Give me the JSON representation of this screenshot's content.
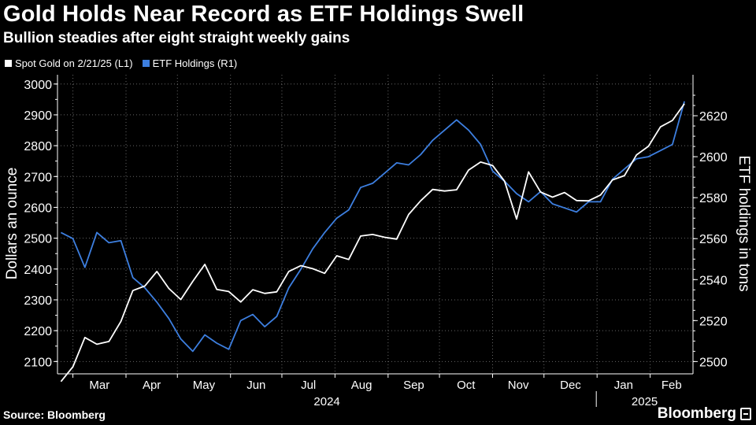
{
  "header": {
    "title": "Gold Holds Near Record as ETF Holdings Swell",
    "subtitle": "Bullion steadies after eight straight weekly gains"
  },
  "footer": {
    "source": "Source: Bloomberg",
    "brand": "Bloomberg"
  },
  "colors": {
    "gold_line": "#ffffff",
    "etf_line": "#3d7fe0",
    "background": "#000000",
    "grid": "#666666"
  },
  "chart_data": {
    "type": "line",
    "left_axis": {
      "label": "Dollars an ounce",
      "ylim": [
        2060,
        3030
      ],
      "ticks": [
        2100,
        2200,
        2300,
        2400,
        2500,
        2600,
        2700,
        2800,
        2900,
        3000
      ]
    },
    "right_axis": {
      "label": "ETF holdings in tons",
      "ylim": [
        2494,
        2640
      ],
      "ticks": [
        2500,
        2520,
        2540,
        2560,
        2580,
        2600,
        2620
      ]
    },
    "x_axis": {
      "month_labels": [
        "Mar",
        "Apr",
        "May",
        "Jun",
        "Jul",
        "Aug",
        "Sep",
        "Oct",
        "Nov",
        "Dec",
        "Jan",
        "Feb"
      ],
      "year_labels": [
        "2024",
        "2025"
      ]
    },
    "grid": true,
    "legend_position": "top-left",
    "series": [
      {
        "name": "Spot Gold on 2/21/25 (L1)",
        "axis": "left",
        "points": [
          [
            "2024-02-23",
            2035
          ],
          [
            "2024-03-01",
            2083
          ],
          [
            "2024-03-08",
            2178
          ],
          [
            "2024-03-15",
            2156
          ],
          [
            "2024-03-22",
            2165
          ],
          [
            "2024-03-29",
            2230
          ],
          [
            "2024-04-05",
            2330
          ],
          [
            "2024-04-12",
            2345
          ],
          [
            "2024-04-19",
            2392
          ],
          [
            "2024-04-26",
            2337
          ],
          [
            "2024-05-03",
            2301
          ],
          [
            "2024-05-10",
            2360
          ],
          [
            "2024-05-17",
            2415
          ],
          [
            "2024-05-24",
            2334
          ],
          [
            "2024-05-31",
            2327
          ],
          [
            "2024-06-07",
            2293
          ],
          [
            "2024-06-14",
            2333
          ],
          [
            "2024-06-21",
            2321
          ],
          [
            "2024-06-28",
            2326
          ],
          [
            "2024-07-05",
            2392
          ],
          [
            "2024-07-12",
            2411
          ],
          [
            "2024-07-19",
            2401
          ],
          [
            "2024-07-26",
            2386
          ],
          [
            "2024-08-02",
            2443
          ],
          [
            "2024-08-09",
            2431
          ],
          [
            "2024-08-16",
            2507
          ],
          [
            "2024-08-23",
            2512
          ],
          [
            "2024-08-30",
            2503
          ],
          [
            "2024-09-06",
            2497
          ],
          [
            "2024-09-13",
            2577
          ],
          [
            "2024-09-20",
            2621
          ],
          [
            "2024-09-27",
            2658
          ],
          [
            "2024-10-04",
            2653
          ],
          [
            "2024-10-11",
            2657
          ],
          [
            "2024-10-18",
            2721
          ],
          [
            "2024-10-25",
            2747
          ],
          [
            "2024-11-01",
            2736
          ],
          [
            "2024-11-08",
            2685
          ],
          [
            "2024-11-15",
            2562
          ],
          [
            "2024-11-22",
            2715
          ],
          [
            "2024-11-29",
            2650
          ],
          [
            "2024-12-06",
            2633
          ],
          [
            "2024-12-13",
            2648
          ],
          [
            "2024-12-20",
            2622
          ],
          [
            "2024-12-27",
            2621
          ],
          [
            "2025-01-03",
            2640
          ],
          [
            "2025-01-10",
            2689
          ],
          [
            "2025-01-17",
            2703
          ],
          [
            "2025-01-24",
            2770
          ],
          [
            "2025-01-31",
            2798
          ],
          [
            "2025-02-07",
            2861
          ],
          [
            "2025-02-14",
            2882
          ],
          [
            "2025-02-21",
            2936
          ]
        ]
      },
      {
        "name": "ETF Holdings (R1)",
        "axis": "right",
        "points": [
          [
            "2024-02-23",
            2563
          ],
          [
            "2024-03-01",
            2560
          ],
          [
            "2024-03-08",
            2546
          ],
          [
            "2024-03-15",
            2563
          ],
          [
            "2024-03-22",
            2558
          ],
          [
            "2024-03-29",
            2559
          ],
          [
            "2024-04-05",
            2541
          ],
          [
            "2024-04-12",
            2536
          ],
          [
            "2024-04-19",
            2529
          ],
          [
            "2024-04-26",
            2521
          ],
          [
            "2024-05-03",
            2511
          ],
          [
            "2024-05-10",
            2505
          ],
          [
            "2024-05-17",
            2513
          ],
          [
            "2024-05-24",
            2509
          ],
          [
            "2024-05-31",
            2506
          ],
          [
            "2024-06-07",
            2520
          ],
          [
            "2024-06-14",
            2523
          ],
          [
            "2024-06-21",
            2517
          ],
          [
            "2024-06-28",
            2522
          ],
          [
            "2024-07-05",
            2536
          ],
          [
            "2024-07-12",
            2545
          ],
          [
            "2024-07-19",
            2555
          ],
          [
            "2024-07-26",
            2563
          ],
          [
            "2024-08-02",
            2570
          ],
          [
            "2024-08-09",
            2574
          ],
          [
            "2024-08-16",
            2585
          ],
          [
            "2024-08-23",
            2587
          ],
          [
            "2024-08-30",
            2592
          ],
          [
            "2024-09-06",
            2597
          ],
          [
            "2024-09-13",
            2596
          ],
          [
            "2024-09-20",
            2601
          ],
          [
            "2024-09-27",
            2608
          ],
          [
            "2024-10-04",
            2613
          ],
          [
            "2024-10-11",
            2618
          ],
          [
            "2024-10-18",
            2613
          ],
          [
            "2024-10-25",
            2606
          ],
          [
            "2024-11-01",
            2593
          ],
          [
            "2024-11-08",
            2588
          ],
          [
            "2024-11-15",
            2582
          ],
          [
            "2024-11-22",
            2578
          ],
          [
            "2024-11-29",
            2583
          ],
          [
            "2024-12-06",
            2577
          ],
          [
            "2024-12-13",
            2575
          ],
          [
            "2024-12-20",
            2573
          ],
          [
            "2024-12-27",
            2578
          ],
          [
            "2025-01-03",
            2578
          ],
          [
            "2025-01-10",
            2589
          ],
          [
            "2025-01-17",
            2594
          ],
          [
            "2025-01-24",
            2599
          ],
          [
            "2025-01-31",
            2600
          ],
          [
            "2025-02-07",
            2603
          ],
          [
            "2025-02-14",
            2606
          ],
          [
            "2025-02-21",
            2627
          ]
        ]
      }
    ]
  }
}
